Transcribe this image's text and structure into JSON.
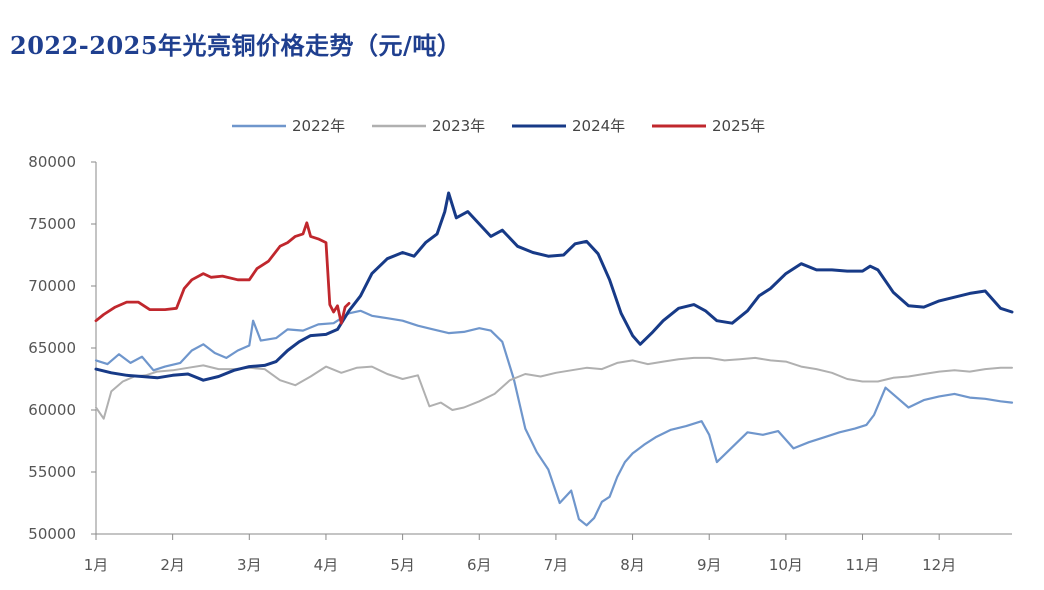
{
  "chart_data": {
    "type": "line",
    "title": "2022-2025年光亮铜价格走势（元/吨）",
    "xlabel": "",
    "ylabel": "",
    "ylim": [
      50000,
      80000
    ],
    "yticks": [
      50000,
      55000,
      60000,
      65000,
      70000,
      75000,
      80000
    ],
    "x_domain": [
      1,
      12.95
    ],
    "xticks": [
      1,
      2,
      3,
      4,
      5,
      6,
      7,
      8,
      9,
      10,
      11,
      12
    ],
    "xtick_labels": [
      "1月",
      "2月",
      "3月",
      "4月",
      "5月",
      "6月",
      "7月",
      "8月",
      "9月",
      "10月",
      "11月",
      "12月"
    ],
    "legend": "top-center",
    "grid": false,
    "series": [
      {
        "name": "2022年",
        "color": "#6f96cc",
        "x": [
          1.0,
          1.15,
          1.3,
          1.45,
          1.6,
          1.75,
          1.9,
          2.1,
          2.25,
          2.4,
          2.55,
          2.7,
          2.85,
          3.0,
          3.05,
          3.15,
          3.35,
          3.5,
          3.7,
          3.9,
          4.1,
          4.3,
          4.45,
          4.6,
          4.8,
          5.0,
          5.2,
          5.4,
          5.6,
          5.8,
          6.0,
          6.15,
          6.3,
          6.45,
          6.6,
          6.75,
          6.9,
          7.05,
          7.2,
          7.3,
          7.4,
          7.5,
          7.6,
          7.7,
          7.8,
          7.9,
          8.0,
          8.15,
          8.3,
          8.5,
          8.7,
          8.9,
          9.0,
          9.1,
          9.3,
          9.5,
          9.7,
          9.9,
          10.1,
          10.3,
          10.5,
          10.7,
          10.9,
          11.05,
          11.15,
          11.3,
          11.45,
          11.6,
          11.8,
          12.0,
          12.2,
          12.4,
          12.6,
          12.8,
          12.95
        ],
        "values": [
          64000,
          63700,
          64500,
          63800,
          64300,
          63200,
          63500,
          63800,
          64800,
          65300,
          64600,
          64200,
          64800,
          65200,
          67200,
          65600,
          65800,
          66500,
          66400,
          66900,
          67000,
          67800,
          68000,
          67600,
          67400,
          67200,
          66800,
          66500,
          66200,
          66300,
          66600,
          66400,
          65500,
          62500,
          58500,
          56600,
          55200,
          52500,
          53500,
          51200,
          50700,
          51300,
          52600,
          53000,
          54600,
          55800,
          56500,
          57200,
          57800,
          58400,
          58700,
          59100,
          58000,
          55800,
          57000,
          58200,
          58000,
          58300,
          56900,
          57400,
          57800,
          58200,
          58500,
          58800,
          59600,
          61800,
          61000,
          60200,
          60800,
          61100,
          61300,
          61000,
          60900,
          60700,
          60600
        ]
      },
      {
        "name": "2023年",
        "color": "#b0b0b0",
        "x": [
          1.0,
          1.1,
          1.2,
          1.35,
          1.5,
          1.65,
          1.8,
          2.0,
          2.2,
          2.4,
          2.6,
          2.8,
          3.0,
          3.2,
          3.4,
          3.6,
          3.8,
          4.0,
          4.2,
          4.4,
          4.6,
          4.8,
          5.0,
          5.2,
          5.35,
          5.5,
          5.65,
          5.8,
          6.0,
          6.2,
          6.4,
          6.6,
          6.8,
          7.0,
          7.2,
          7.4,
          7.6,
          7.8,
          8.0,
          8.2,
          8.4,
          8.6,
          8.8,
          9.0,
          9.2,
          9.4,
          9.6,
          9.8,
          10.0,
          10.2,
          10.4,
          10.6,
          10.8,
          11.0,
          11.2,
          11.4,
          11.6,
          11.8,
          12.0,
          12.2,
          12.4,
          12.6,
          12.8,
          12.95
        ],
        "values": [
          60200,
          59300,
          61500,
          62300,
          62700,
          62800,
          63100,
          63200,
          63400,
          63600,
          63300,
          63300,
          63400,
          63300,
          62400,
          62000,
          62700,
          63500,
          63000,
          63400,
          63500,
          62900,
          62500,
          62800,
          60300,
          60600,
          60000,
          60200,
          60700,
          61300,
          62400,
          62900,
          62700,
          63000,
          63200,
          63400,
          63300,
          63800,
          64000,
          63700,
          63900,
          64100,
          64200,
          64200,
          64000,
          64100,
          64200,
          64000,
          63900,
          63500,
          63300,
          63000,
          62500,
          62300,
          62300,
          62600,
          62700,
          62900,
          63100,
          63200,
          63100,
          63300,
          63400,
          63400
        ]
      },
      {
        "name": "2024年",
        "color": "#173a87",
        "x": [
          1.0,
          1.2,
          1.4,
          1.6,
          1.8,
          2.0,
          2.2,
          2.4,
          2.6,
          2.8,
          3.0,
          3.2,
          3.35,
          3.5,
          3.65,
          3.8,
          4.0,
          4.15,
          4.3,
          4.45,
          4.6,
          4.8,
          5.0,
          5.15,
          5.3,
          5.45,
          5.55,
          5.6,
          5.7,
          5.85,
          6.0,
          6.15,
          6.3,
          6.5,
          6.7,
          6.9,
          7.1,
          7.25,
          7.4,
          7.55,
          7.7,
          7.85,
          8.0,
          8.1,
          8.25,
          8.4,
          8.6,
          8.8,
          8.95,
          9.1,
          9.3,
          9.5,
          9.65,
          9.8,
          10.0,
          10.2,
          10.4,
          10.6,
          10.8,
          11.0,
          11.1,
          11.2,
          11.4,
          11.6,
          11.8,
          12.0,
          12.2,
          12.4,
          12.6,
          12.8,
          12.95
        ],
        "values": [
          63300,
          63000,
          62800,
          62700,
          62600,
          62800,
          62900,
          62400,
          62700,
          63200,
          63500,
          63600,
          63900,
          64800,
          65500,
          66000,
          66100,
          66500,
          68000,
          69200,
          71000,
          72200,
          72700,
          72400,
          73500,
          74200,
          76000,
          77500,
          75500,
          76000,
          75000,
          74000,
          74500,
          73200,
          72700,
          72400,
          72500,
          73400,
          73600,
          72600,
          70500,
          67800,
          66000,
          65300,
          66200,
          67200,
          68200,
          68500,
          68000,
          67200,
          67000,
          68000,
          69200,
          69800,
          71000,
          71800,
          71300,
          71300,
          71200,
          71200,
          71600,
          71300,
          69500,
          68400,
          68300,
          68800,
          69100,
          69400,
          69600,
          68200,
          67900
        ]
      },
      {
        "name": "2025年",
        "color": "#c0272d",
        "x": [
          1.0,
          1.1,
          1.25,
          1.4,
          1.55,
          1.7,
          1.9,
          2.05,
          2.15,
          2.25,
          2.4,
          2.5,
          2.65,
          2.85,
          3.0,
          3.1,
          3.25,
          3.4,
          3.5,
          3.6,
          3.7,
          3.75,
          3.8,
          3.9,
          4.0,
          4.05,
          4.1,
          4.15,
          4.2,
          4.25,
          4.3
        ],
        "values": [
          67200,
          67700,
          68300,
          68700,
          68700,
          68100,
          68100,
          68200,
          69800,
          70500,
          71000,
          70700,
          70800,
          70500,
          70500,
          71400,
          72000,
          73200,
          73500,
          74000,
          74200,
          75100,
          74000,
          73800,
          73500,
          68500,
          67900,
          68400,
          67000,
          68300,
          68600
        ]
      }
    ]
  }
}
